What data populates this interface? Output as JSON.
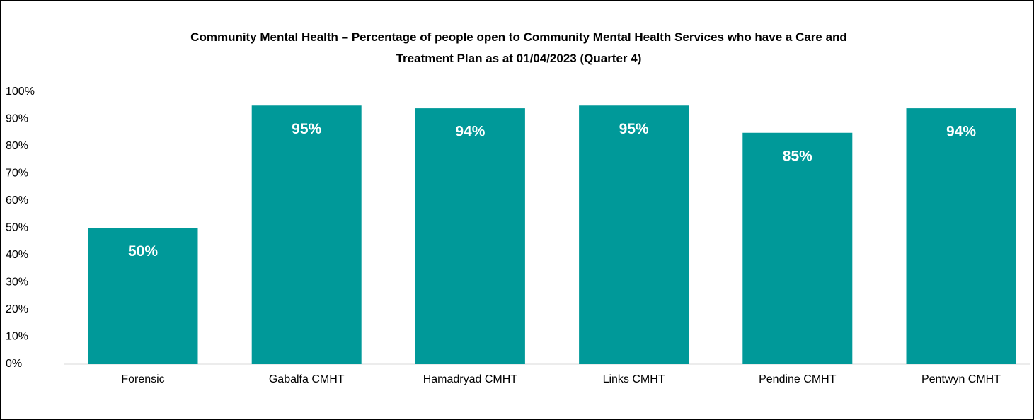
{
  "chart_data": {
    "type": "bar",
    "title": "Community Mental Health – Percentage of people open to Community Mental Health Services who have a Care and Treatment Plan as at 01/04/2023 (Quarter 4)",
    "categories": [
      "Forensic",
      "Gabalfa CMHT",
      "Hamadryad CMHT",
      "Links CMHT",
      "Pendine CMHT",
      "Pentwyn CMHT"
    ],
    "values": [
      50,
      95,
      94,
      95,
      85,
      94
    ],
    "value_labels": [
      "50%",
      "95%",
      "94%",
      "95%",
      "85%",
      "94%"
    ],
    "color": "#009999",
    "ylim": [
      0,
      100
    ],
    "yticks": [
      {
        "value": 0,
        "label": "0%"
      },
      {
        "value": 10,
        "label": "10%"
      },
      {
        "value": 20,
        "label": "20%"
      },
      {
        "value": 30,
        "label": "30%"
      },
      {
        "value": 40,
        "label": "40%"
      },
      {
        "value": 50,
        "label": "50%"
      },
      {
        "value": 60,
        "label": "60%"
      },
      {
        "value": 70,
        "label": "70%"
      },
      {
        "value": 80,
        "label": "80%"
      },
      {
        "value": 90,
        "label": "90%"
      },
      {
        "value": 100,
        "label": "100%"
      }
    ],
    "grid": false
  }
}
